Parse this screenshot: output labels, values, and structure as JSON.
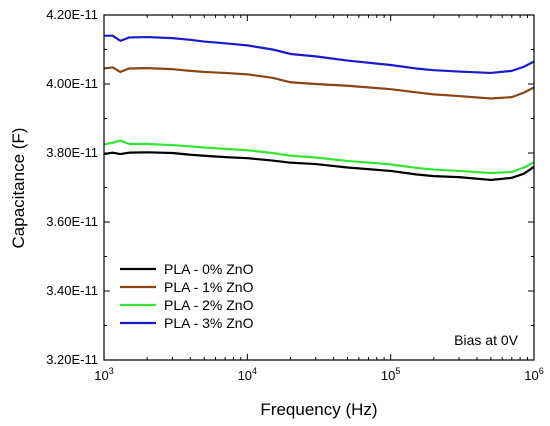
{
  "chart_data": {
    "type": "line",
    "xlabel": "Frequency (Hz)",
    "ylabel": "Capacitance (F)",
    "xscale": "log",
    "xlim": [
      1000,
      1000000
    ],
    "ylim": [
      3.2e-11,
      4.2e-11
    ],
    "x_ticks": [
      {
        "value": 1000,
        "base": "10",
        "exp": "3"
      },
      {
        "value": 10000,
        "base": "10",
        "exp": "4"
      },
      {
        "value": 100000,
        "base": "10",
        "exp": "5"
      },
      {
        "value": 1000000,
        "base": "10",
        "exp": "6"
      }
    ],
    "y_ticks": [
      {
        "value": 3.2e-11,
        "label": "3.20E-11"
      },
      {
        "value": 3.4e-11,
        "label": "3.40E-11"
      },
      {
        "value": 3.6e-11,
        "label": "3.60E-11"
      },
      {
        "value": 3.8e-11,
        "label": "3.80E-11"
      },
      {
        "value": 4e-11,
        "label": "4.00E-11"
      },
      {
        "value": 4.2e-11,
        "label": "4.20E-11"
      }
    ],
    "legend_position": "bottom-left",
    "annotation": "Bias at 0V",
    "series": [
      {
        "name": "PLA - 0% ZnO",
        "color": "#000000",
        "x": [
          1000,
          1150,
          1300,
          1500,
          2000,
          3000,
          4000,
          5000,
          7000,
          10000,
          15000,
          20000,
          30000,
          50000,
          100000,
          150000,
          200000,
          300000,
          500000,
          700000,
          850000,
          1000000
        ],
        "y": [
          3.797e-11,
          3.801e-11,
          3.797e-11,
          3.801e-11,
          3.802e-11,
          3.8e-11,
          3.795e-11,
          3.792e-11,
          3.788e-11,
          3.785e-11,
          3.778e-11,
          3.772e-11,
          3.768e-11,
          3.758e-11,
          3.748e-11,
          3.738e-11,
          3.733e-11,
          3.73e-11,
          3.722e-11,
          3.728e-11,
          3.74e-11,
          3.76e-11
        ]
      },
      {
        "name": "PLA - 1% ZnO",
        "color": "#8b4513",
        "x": [
          1000,
          1150,
          1300,
          1500,
          2000,
          3000,
          4000,
          5000,
          7000,
          10000,
          15000,
          20000,
          30000,
          50000,
          100000,
          150000,
          200000,
          300000,
          500000,
          700000,
          850000,
          1000000
        ],
        "y": [
          4.045e-11,
          4.048e-11,
          4.035e-11,
          4.045e-11,
          4.046e-11,
          4.043e-11,
          4.038e-11,
          4.035e-11,
          4.032e-11,
          4.028e-11,
          4.018e-11,
          4.005e-11,
          4e-11,
          3.995e-11,
          3.985e-11,
          3.976e-11,
          3.97e-11,
          3.965e-11,
          3.958e-11,
          3.962e-11,
          3.975e-11,
          3.99e-11
        ]
      },
      {
        "name": "PLA - 2% ZnO",
        "color": "#33e633",
        "x": [
          1000,
          1150,
          1300,
          1500,
          2000,
          3000,
          4000,
          5000,
          7000,
          10000,
          15000,
          20000,
          30000,
          50000,
          100000,
          150000,
          200000,
          300000,
          500000,
          700000,
          850000,
          1000000
        ],
        "y": [
          3.825e-11,
          3.83e-11,
          3.836e-11,
          3.826e-11,
          3.826e-11,
          3.823e-11,
          3.819e-11,
          3.816e-11,
          3.812e-11,
          3.808e-11,
          3.8e-11,
          3.792e-11,
          3.787e-11,
          3.777e-11,
          3.767e-11,
          3.757e-11,
          3.752e-11,
          3.748e-11,
          3.742e-11,
          3.745e-11,
          3.758e-11,
          3.773e-11
        ]
      },
      {
        "name": "PLA - 3% ZnO",
        "color": "#1a1acc",
        "x": [
          1000,
          1150,
          1300,
          1500,
          2000,
          3000,
          4000,
          5000,
          7000,
          10000,
          15000,
          20000,
          30000,
          50000,
          100000,
          150000,
          200000,
          300000,
          500000,
          700000,
          850000,
          1000000
        ],
        "y": [
          4.14e-11,
          4.14e-11,
          4.125e-11,
          4.135e-11,
          4.136e-11,
          4.133e-11,
          4.128e-11,
          4.123e-11,
          4.118e-11,
          4.112e-11,
          4.1e-11,
          4.087e-11,
          4.08e-11,
          4.068e-11,
          4.055e-11,
          4.045e-11,
          4.04e-11,
          4.036e-11,
          4.032e-11,
          4.038e-11,
          4.05e-11,
          4.065e-11
        ]
      }
    ]
  }
}
